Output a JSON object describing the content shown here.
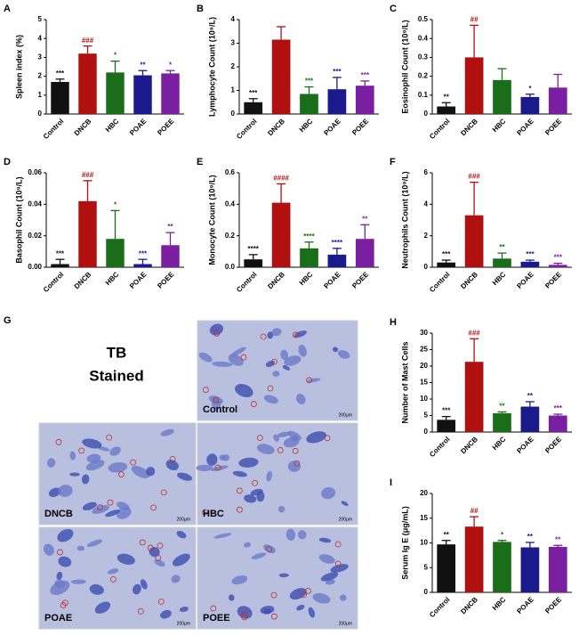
{
  "chart_data": [
    {
      "type": "bar",
      "panel": "A",
      "ylabel": "Spleen index (%)",
      "categories": [
        "Control",
        "DNCB",
        "HBC",
        "POAE",
        "POEE"
      ],
      "values": [
        1.7,
        3.2,
        2.2,
        2.05,
        2.15
      ],
      "errors": [
        0.15,
        0.4,
        0.6,
        0.25,
        0.15
      ],
      "labels": [
        "***",
        "###",
        "*",
        "**",
        "*"
      ],
      "colors": [
        "#111111",
        "#b01010",
        "#1a6e1a",
        "#1a1a8c",
        "#7b1fa2"
      ],
      "ylim": [
        0,
        5
      ],
      "yticks": [
        0,
        1,
        2,
        3,
        4,
        5
      ]
    },
    {
      "type": "bar",
      "panel": "B",
      "ylabel": "Lymphocyte Count (10⁹/L)",
      "categories": [
        "Control",
        "DNCB",
        "HBC",
        "POAE",
        "POEE"
      ],
      "values": [
        0.5,
        3.15,
        0.85,
        1.05,
        1.2
      ],
      "errors": [
        0.15,
        0.55,
        0.3,
        0.5,
        0.2
      ],
      "labels": [
        "***",
        null,
        "***",
        "***",
        "***"
      ],
      "colors": [
        "#111111",
        "#b01010",
        "#1a6e1a",
        "#1a1a8c",
        "#7b1fa2"
      ],
      "ylim": [
        0,
        4
      ],
      "yticks": [
        0,
        1,
        2,
        3,
        4
      ]
    },
    {
      "type": "bar",
      "panel": "C",
      "ylabel": "Eosinophil Count (10⁹/L)",
      "categories": [
        "Control",
        "DNCB",
        "HBC",
        "POAE",
        "POEE"
      ],
      "values": [
        0.04,
        0.3,
        0.18,
        0.09,
        0.14
      ],
      "errors": [
        0.02,
        0.17,
        0.06,
        0.015,
        0.07
      ],
      "labels": [
        "**",
        "##",
        null,
        "*",
        null
      ],
      "colors": [
        "#111111",
        "#b01010",
        "#1a6e1a",
        "#1a1a8c",
        "#7b1fa2"
      ],
      "ylim": [
        0,
        0.5
      ],
      "yticks": [
        0,
        0.1,
        0.2,
        0.3,
        0.4,
        0.5
      ]
    },
    {
      "type": "bar",
      "panel": "D",
      "ylabel": "Basophil Count (10⁹/L)",
      "categories": [
        "Control",
        "DNCB",
        "HBC",
        "POAE",
        "POEE"
      ],
      "values": [
        0.002,
        0.042,
        0.018,
        0.002,
        0.014
      ],
      "errors": [
        0.003,
        0.013,
        0.018,
        0.003,
        0.008
      ],
      "labels": [
        "***",
        "###",
        "*",
        "***",
        "**"
      ],
      "colors": [
        "#111111",
        "#b01010",
        "#1a6e1a",
        "#1a1a8c",
        "#7b1fa2"
      ],
      "ylim": [
        0,
        0.06
      ],
      "yticks": [
        {
          "value": 0,
          "label": "0.00"
        },
        0.02,
        0.04,
        0.06
      ]
    },
    {
      "type": "bar",
      "panel": "E",
      "ylabel": "Monocyte Count (10⁹/L)",
      "categories": [
        "Control",
        "DNCB",
        "HBC",
        "POAE",
        "POEE"
      ],
      "values": [
        0.05,
        0.41,
        0.12,
        0.08,
        0.18
      ],
      "errors": [
        0.03,
        0.12,
        0.04,
        0.04,
        0.09
      ],
      "labels": [
        "****",
        "####",
        "****",
        "****",
        "**"
      ],
      "colors": [
        "#111111",
        "#b01010",
        "#1a6e1a",
        "#1a1a8c",
        "#7b1fa2"
      ],
      "ylim": [
        0,
        0.6
      ],
      "yticks": [
        {
          "value": 0,
          "label": "0.0"
        },
        0.2,
        0.4,
        0.6
      ]
    },
    {
      "type": "bar",
      "panel": "F",
      "ylabel": "Neutrophils Count (10⁹/L)",
      "categories": [
        "Control",
        "DNCB",
        "HBC",
        "POAE",
        "POEE"
      ],
      "values": [
        0.3,
        3.3,
        0.55,
        0.35,
        0.15
      ],
      "errors": [
        0.15,
        2.1,
        0.35,
        0.1,
        0.1
      ],
      "labels": [
        "***",
        "###",
        "**",
        "***",
        "***"
      ],
      "colors": [
        "#111111",
        "#b01010",
        "#1a6e1a",
        "#1a1a8c",
        "#7b1fa2"
      ],
      "ylim": [
        0,
        6
      ],
      "yticks": [
        0,
        2,
        4,
        6
      ]
    },
    {
      "type": "bar",
      "panel": "H",
      "ylabel": "Number of Mast Cells",
      "categories": [
        "Control",
        "DNCB",
        "HBC",
        "POAE",
        "POEE"
      ],
      "values": [
        3.7,
        21.3,
        5.7,
        7.7,
        5.0
      ],
      "errors": [
        1.0,
        7.0,
        0.4,
        1.5,
        0.4
      ],
      "labels": [
        "***",
        "###",
        "**",
        "**",
        "***"
      ],
      "colors": [
        "#111111",
        "#b01010",
        "#1a6e1a",
        "#1a1a8c",
        "#7b1fa2"
      ],
      "ylim": [
        0,
        30
      ],
      "yticks": [
        0,
        5,
        10,
        15,
        20,
        25,
        30
      ]
    },
    {
      "type": "bar",
      "panel": "I",
      "ylabel": "Serum Ig E (μg/mL)",
      "categories": [
        "Control",
        "DNCB",
        "HBC",
        "POAE",
        "POEE"
      ],
      "values": [
        9.7,
        13.3,
        10.2,
        9.1,
        9.2
      ],
      "errors": [
        0.8,
        2.0,
        0.3,
        1.0,
        0.3
      ],
      "labels": [
        "**",
        "##",
        "*",
        "**",
        "**"
      ],
      "colors": [
        "#111111",
        "#b01010",
        "#1a6e1a",
        "#1a1a8c",
        "#7b1fa2"
      ],
      "ylim": [
        0,
        20
      ],
      "yticks": [
        0,
        5,
        10,
        15,
        20
      ]
    }
  ],
  "histology": {
    "panel": "G",
    "title": [
      "TB",
      "Stained"
    ],
    "images": [
      "Control",
      "DNCB",
      "HBC",
      "POAE",
      "POEE"
    ],
    "scale": "200μm"
  }
}
